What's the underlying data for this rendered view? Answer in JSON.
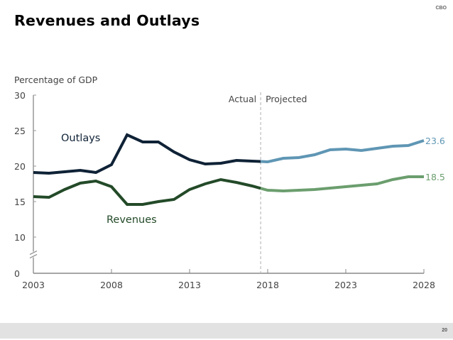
{
  "slide": {
    "title": "Revenues and Outlays",
    "brand": "CBO",
    "page_number": "20"
  },
  "chart_data": {
    "type": "line",
    "title": "Revenues and Outlays",
    "ylabel": "Percentage of GDP",
    "xlabel": "",
    "x": [
      2003,
      2004,
      2005,
      2006,
      2007,
      2008,
      2009,
      2010,
      2011,
      2012,
      2013,
      2014,
      2015,
      2016,
      2017,
      2018,
      2019,
      2020,
      2021,
      2022,
      2023,
      2024,
      2025,
      2026,
      2027,
      2028
    ],
    "xlim": [
      2003,
      2028
    ],
    "xticks": [
      2003,
      2008,
      2013,
      2018,
      2023,
      2028
    ],
    "xtick_labels": [
      "2003",
      "2008",
      "2013",
      "2018",
      "2023",
      "2028"
    ],
    "ylim": [
      0,
      30
    ],
    "yticks": [
      0,
      10,
      15,
      20,
      25,
      30
    ],
    "ytick_labels": [
      "0",
      "10",
      "15",
      "20",
      "25",
      "30"
    ],
    "y_axis_break": [
      0,
      10
    ],
    "grid": false,
    "actual_projected_split": 2017.55,
    "region_labels": {
      "actual": "Actual",
      "projected": "Projected"
    },
    "series": [
      {
        "name": "Outlays",
        "color_actual": "#0f2236",
        "color_projected": "#5f96b4",
        "end_label": "23.6",
        "values": [
          19.1,
          19.0,
          19.2,
          19.4,
          19.1,
          20.2,
          24.4,
          23.4,
          23.4,
          22.0,
          20.9,
          20.3,
          20.4,
          20.8,
          20.7,
          20.6,
          21.1,
          21.2,
          21.6,
          22.3,
          22.4,
          22.2,
          22.5,
          22.8,
          22.9,
          23.6
        ]
      },
      {
        "name": "Revenues",
        "color_actual": "#234a28",
        "color_projected": "#6b9e6e",
        "end_label": "18.5",
        "values": [
          15.7,
          15.6,
          16.7,
          17.6,
          17.9,
          17.1,
          14.6,
          14.6,
          15.0,
          15.3,
          16.7,
          17.5,
          18.1,
          17.7,
          17.2,
          16.6,
          16.5,
          16.6,
          16.7,
          16.9,
          17.1,
          17.3,
          17.5,
          18.1,
          18.5,
          18.5
        ]
      }
    ]
  }
}
